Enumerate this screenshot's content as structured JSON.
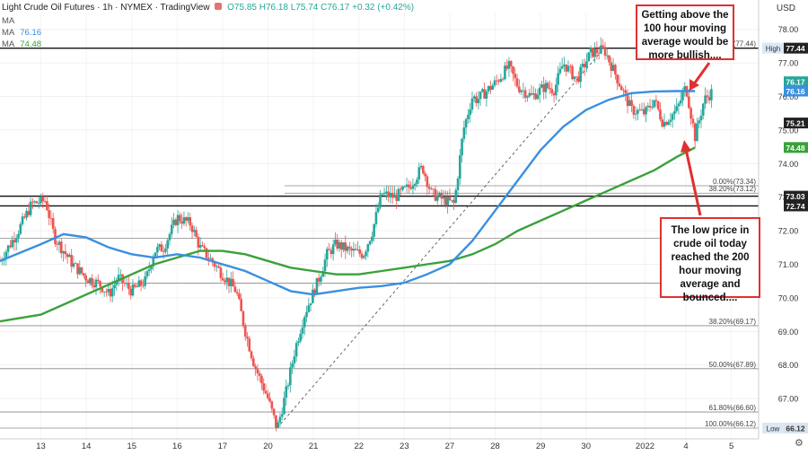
{
  "header": {
    "symbol": "Light Crude Oil Futures · 1h · NYMEX · TradingView",
    "ohlc": "O75.85 H76.18 L75.74 C76.17 +0.32 (+0.42%)",
    "ma_rows": [
      {
        "label": "MA",
        "value": ""
      },
      {
        "label": "MA",
        "value": "76.16",
        "color": "#3a8fe0"
      },
      {
        "label": "MA",
        "value": "74.48",
        "color": "#3aa13a"
      }
    ],
    "currency": "USD"
  },
  "callouts": {
    "top": "Getting above the 100 hour moving average would be more bullish....",
    "bottom": "The low price in crude oil today reached the 200 hour moving average and bounced...."
  },
  "chart_data": {
    "type": "line",
    "ylim": [
      65.8,
      78.5
    ],
    "y_ticks": [
      67.0,
      68.0,
      69.0,
      70.0,
      71.0,
      72.0,
      73.0,
      74.0,
      75.0,
      76.0,
      77.0,
      78.0
    ],
    "x_ticks": [
      "13",
      "14",
      "15",
      "16",
      "17",
      "20",
      "21",
      "22",
      "23",
      "27",
      "28",
      "29",
      "30",
      "2022",
      "4",
      "5"
    ],
    "x_tick_pos": [
      0.5,
      1.5,
      2.5,
      3.5,
      4.5,
      5.5,
      6.5,
      7.5,
      8.5,
      9.5,
      10.5,
      11.5,
      12.5,
      13.8,
      14.7,
      15.7
    ],
    "x_range": [
      -0.4,
      16.3
    ],
    "colors": {
      "up": "#26a69a",
      "down": "#ef5350",
      "ma100": "#3a8fe0",
      "ma200": "#3aa13a",
      "callout": "#e03030"
    },
    "horizontal_levels": [
      {
        "y": 77.44,
        "label": "77.44",
        "tag": "High",
        "color": "#222",
        "dark": true
      },
      {
        "y": 73.03,
        "label": "73.03",
        "color": "#222",
        "dark": true
      },
      {
        "y": 72.74,
        "label": "72.74",
        "color": "#222",
        "dark": true
      }
    ],
    "price_labels": [
      {
        "y": 76.17,
        "label": "76.17",
        "sub": "33:09",
        "color": "#26a69a"
      },
      {
        "y": 76.16,
        "label": "76.16",
        "color": "#3a8fe0"
      },
      {
        "y": 75.21,
        "label": "75.21",
        "color": "#222"
      },
      {
        "y": 74.48,
        "label": "74.48",
        "color": "#3aa13a"
      },
      {
        "y": 66.12,
        "label": "66.12",
        "tag": "Low",
        "color": "#d9e4f0",
        "dark": false
      }
    ],
    "fib_levels": [
      {
        "y": 77.44,
        "label": "0.00%(77.44)"
      },
      {
        "y": 73.34,
        "label": "0.00%(73.34)"
      },
      {
        "y": 73.12,
        "label": "38.20%(73.12)"
      },
      {
        "y": 71.78,
        "label": "71.78)"
      },
      {
        "y": 70.44,
        "label": "70.44)"
      },
      {
        "y": 69.17,
        "label": "38.20%(69.17)"
      },
      {
        "y": 67.89,
        "label": "50.00%(67.89)"
      },
      {
        "y": 66.6,
        "label": "61.80%(66.60)"
      },
      {
        "y": 66.12,
        "label": "100.00%(66.12)"
      }
    ],
    "trendline": {
      "from": [
        5.7,
        66.12
      ],
      "to": [
        12.9,
        77.44
      ]
    },
    "price_path": {
      "x": [
        -0.4,
        0.0,
        0.3,
        0.6,
        0.8,
        1.0,
        1.2,
        1.5,
        1.8,
        2.0,
        2.2,
        2.5,
        2.8,
        3.0,
        3.2,
        3.5,
        3.8,
        4.0,
        4.2,
        4.5,
        4.8,
        5.0,
        5.2,
        5.5,
        5.7,
        5.9,
        6.1,
        6.3,
        6.6,
        6.8,
        7.0,
        7.3,
        7.6,
        7.8,
        8.0,
        8.3,
        8.6,
        8.9,
        9.1,
        9.4,
        9.6,
        9.8,
        10.0,
        10.1,
        10.5,
        10.8,
        11.0,
        11.3,
        11.6,
        11.8,
        12.0,
        12.3,
        12.6,
        12.9,
        13.2,
        13.5,
        13.8,
        14.0,
        14.2,
        14.5,
        14.7,
        14.9,
        15.1,
        15.3
      ],
      "y": [
        71.1,
        72.0,
        72.8,
        72.9,
        71.8,
        71.4,
        71.0,
        70.6,
        70.4,
        70.1,
        70.6,
        70.2,
        70.5,
        71.4,
        71.5,
        72.4,
        72.2,
        71.5,
        71.2,
        70.7,
        70.2,
        69.0,
        68.0,
        67.0,
        66.1,
        67.2,
        68.5,
        69.5,
        70.5,
        71.3,
        71.6,
        71.4,
        71.3,
        72.0,
        73.1,
        73.0,
        73.3,
        73.9,
        73.1,
        72.9,
        72.8,
        75.0,
        76.0,
        75.9,
        76.4,
        76.9,
        76.3,
        76.0,
        76.3,
        76.2,
        77.0,
        76.5,
        77.3,
        77.4,
        76.5,
        75.6,
        75.5,
        75.9,
        75.2,
        75.6,
        76.3,
        74.8,
        75.9,
        76.17
      ]
    },
    "ma100": {
      "x": [
        -0.4,
        0.5,
        1.0,
        1.5,
        2.0,
        2.5,
        3.0,
        3.5,
        4.0,
        4.5,
        5.0,
        5.5,
        6.0,
        6.5,
        7.0,
        7.5,
        8.0,
        8.5,
        9.0,
        9.5,
        10.0,
        10.5,
        11.0,
        11.5,
        12.0,
        12.5,
        13.0,
        13.5,
        14.0,
        14.5,
        14.9
      ],
      "y": [
        71.1,
        71.6,
        71.9,
        71.8,
        71.5,
        71.3,
        71.2,
        71.3,
        71.2,
        71.0,
        70.8,
        70.5,
        70.2,
        70.1,
        70.2,
        70.3,
        70.35,
        70.45,
        70.7,
        71.0,
        71.7,
        72.6,
        73.5,
        74.4,
        75.1,
        75.6,
        75.9,
        76.1,
        76.15,
        76.16,
        76.16
      ]
    },
    "ma200": {
      "x": [
        -0.4,
        0.5,
        1.0,
        1.5,
        2.0,
        2.5,
        3.0,
        3.5,
        4.0,
        4.5,
        5.0,
        5.5,
        6.0,
        6.5,
        7.0,
        7.5,
        8.0,
        8.5,
        9.0,
        9.5,
        10.0,
        10.5,
        11.0,
        11.5,
        12.0,
        12.5,
        13.0,
        13.5,
        14.0,
        14.5,
        14.9
      ],
      "y": [
        69.3,
        69.5,
        69.8,
        70.1,
        70.4,
        70.7,
        71.0,
        71.2,
        71.4,
        71.4,
        71.3,
        71.1,
        70.9,
        70.8,
        70.7,
        70.7,
        70.8,
        70.9,
        71.0,
        71.1,
        71.3,
        71.6,
        72.0,
        72.3,
        72.6,
        72.9,
        73.2,
        73.5,
        73.8,
        74.2,
        74.48
      ]
    }
  }
}
